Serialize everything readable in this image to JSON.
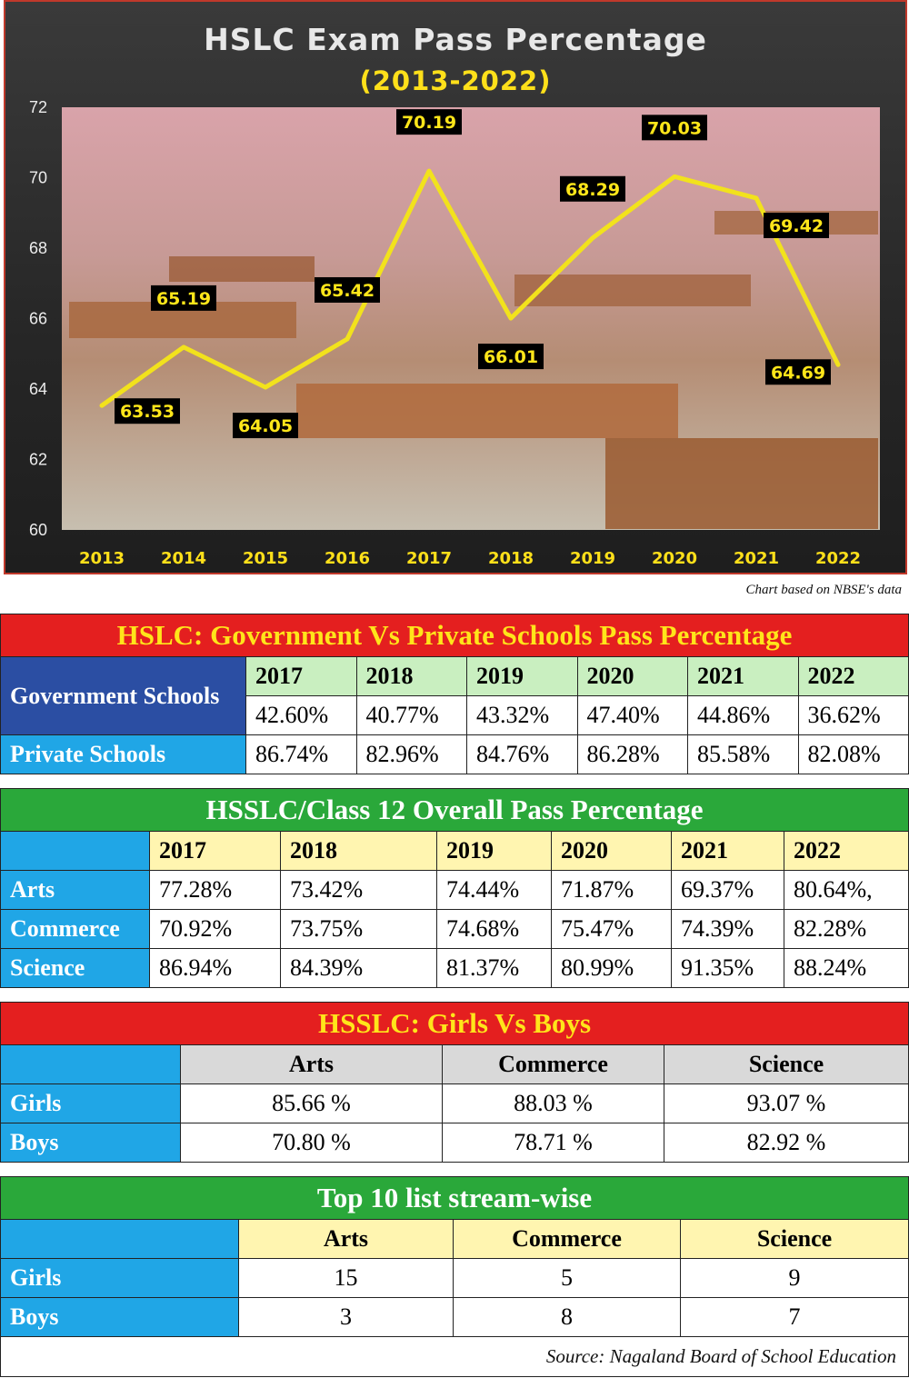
{
  "chart_data": {
    "type": "line",
    "title": "HSLC Exam Pass Percentage",
    "subtitle": "(2013-2022)",
    "x": [
      "2013",
      "2014",
      "2015",
      "2016",
      "2017",
      "2018",
      "2019",
      "2020",
      "2021",
      "2022"
    ],
    "series": [
      {
        "values": [
          63.53,
          65.19,
          64.05,
          65.42,
          70.19,
          66.01,
          68.29,
          70.03,
          69.42,
          64.69
        ]
      }
    ],
    "value_labels": [
      "63.53",
      "65.19",
      "64.05",
      "65.42",
      "70.19",
      "66.01",
      "68.29",
      "70.03",
      "69.42",
      "64.69"
    ],
    "yticks": [
      "72",
      "70",
      "68",
      "66",
      "64",
      "62",
      "60"
    ],
    "ylim": [
      60,
      72
    ],
    "grid": false,
    "line_color": "#f2e21c",
    "label_bg": "#000000",
    "label_color": "#ffe61a",
    "note": "Chart based on NBSE's data"
  },
  "table1": {
    "title": "HSLC: Government Vs Private Schools Pass Percentage",
    "years": [
      "2017",
      "2018",
      "2019",
      "2020",
      "2021",
      "2022"
    ],
    "rows": [
      {
        "label": "Government Schools",
        "values": [
          "42.60%",
          "40.77%",
          "43.32%",
          "47.40%",
          "44.86%",
          "36.62%"
        ]
      },
      {
        "label": "Private Schools",
        "values": [
          "86.74%",
          "82.96%",
          "84.76%",
          "86.28%",
          "85.58%",
          "82.08%"
        ]
      }
    ]
  },
  "table2": {
    "title": "HSSLC/Class 12 Overall Pass Percentage",
    "years": [
      "2017",
      "2018",
      "2019",
      "2020",
      "2021",
      "2022"
    ],
    "rows": [
      {
        "label": "Arts",
        "values": [
          "77.28%",
          "73.42%",
          "74.44%",
          "71.87%",
          "69.37%",
          "80.64%,"
        ]
      },
      {
        "label": "Commerce",
        "values": [
          "70.92%",
          "73.75%",
          "74.68%",
          "75.47%",
          "74.39%",
          "82.28%"
        ]
      },
      {
        "label": "Science",
        "values": [
          "86.94%",
          "84.39%",
          "81.37%",
          "80.99%",
          "91.35%",
          "88.24%"
        ]
      }
    ]
  },
  "table3": {
    "title": "HSSLC: Girls Vs Boys",
    "streams": [
      "Arts",
      "Commerce",
      "Science"
    ],
    "rows": [
      {
        "label": "Girls",
        "values": [
          "85.66 %",
          "88.03 %",
          "93.07 %"
        ]
      },
      {
        "label": "Boys",
        "values": [
          "70.80 %",
          "78.71 %",
          "82.92 %"
        ]
      }
    ]
  },
  "table4": {
    "title": "Top 10 list stream-wise",
    "streams": [
      "Arts",
      "Commerce",
      "Science"
    ],
    "rows": [
      {
        "label": "Girls",
        "values": [
          "15",
          "5",
          "9"
        ]
      },
      {
        "label": "Boys",
        "values": [
          "3",
          "8",
          "7"
        ]
      }
    ]
  },
  "source": "Source: Nagaland Board of School Education"
}
